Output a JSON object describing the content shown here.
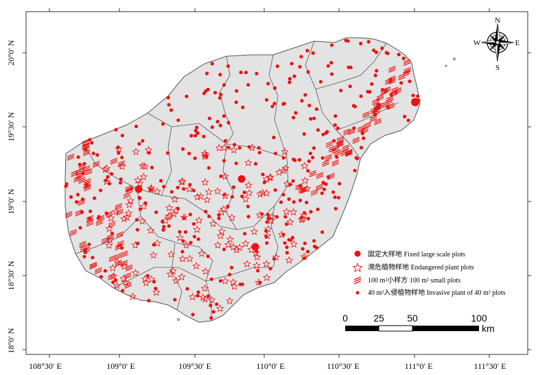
{
  "map": {
    "x_ticks": [
      "108°30′ E",
      "109°0′ E",
      "109°30′ E",
      "110°0′ E",
      "110°30′ E",
      "111°0′ E",
      "111°30′ E"
    ],
    "y_ticks": [
      "20°0′ N",
      "19°30′ N",
      "19°0′ N",
      "18°30′ N",
      "18°0′ N"
    ]
  },
  "compass": {
    "n": "N",
    "s": "S",
    "e": "E",
    "w": "W"
  },
  "legend": [
    {
      "label": "固定大样地  Fixed large scale plots",
      "symbol": "large-dot"
    },
    {
      "label": "濒危植物样地  Endangered plant plots",
      "symbol": "star"
    },
    {
      "label": "100 m²小样方  100 m² small plots",
      "symbol": "hatch"
    },
    {
      "label": "40 m²入侵植物样地  Invasive plant of 40 m² plots",
      "symbol": "small-dot"
    }
  ],
  "scale": {
    "labels": [
      "0",
      "25",
      "50",
      "100"
    ],
    "unit": "km"
  },
  "colors": {
    "island_fill": "#e3e3e3",
    "boundary": "#555555",
    "marker": "#ee1111"
  }
}
